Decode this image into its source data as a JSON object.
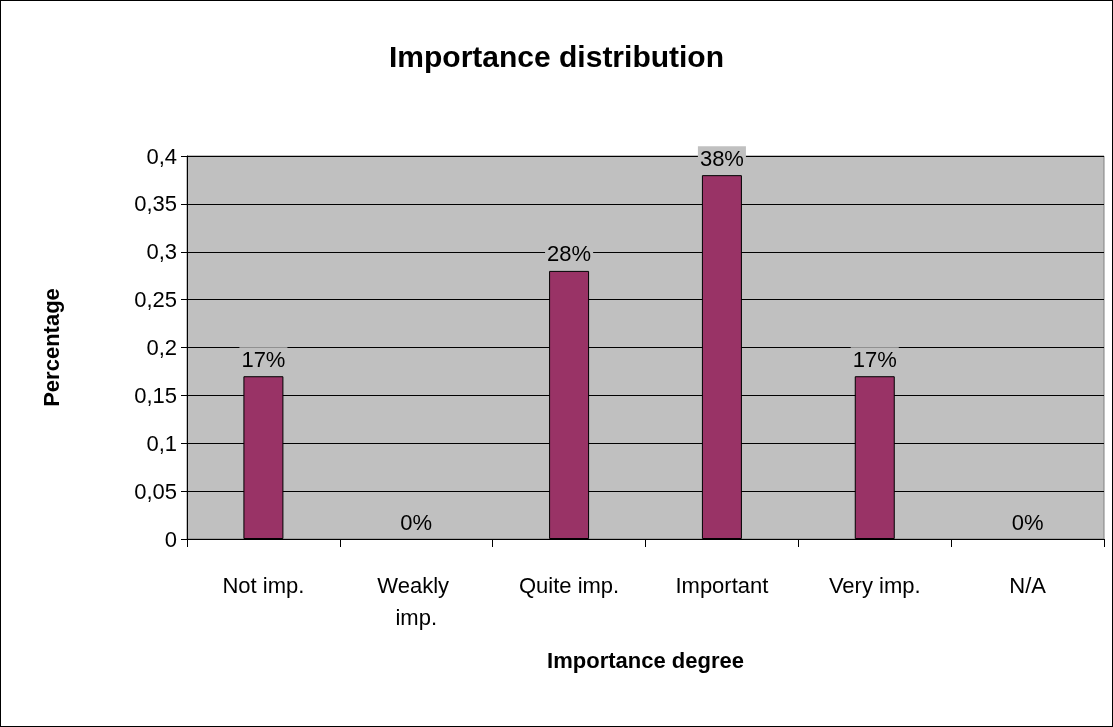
{
  "chart_data": {
    "type": "bar",
    "title": "Importance distribution",
    "xlabel": "Importance degree",
    "ylabel": "Percentage",
    "categories": [
      "Not imp.",
      "Weakly imp.",
      "Quite imp.",
      "Important",
      "Very imp.",
      "N/A"
    ],
    "values": [
      0.17,
      0,
      0.28,
      0.38,
      0.17,
      0
    ],
    "value_labels": [
      "17%",
      "0%",
      "28%",
      "38%",
      "17%",
      "0%"
    ],
    "color": "#993366",
    "ylim": [
      0,
      0.4
    ],
    "yticks": [
      0,
      {
        "value": 0.05,
        "label": "0,05"
      },
      {
        "value": 0.1,
        "label": "0,1"
      },
      {
        "value": 0.15,
        "label": "0,15"
      },
      {
        "value": 0.2,
        "label": "0,2"
      },
      {
        "value": 0.25,
        "label": "0,25"
      },
      {
        "value": 0.3,
        "label": "0,3"
      },
      {
        "value": 0.35,
        "label": "0,35"
      },
      {
        "value": 0.4,
        "label": "0,4"
      }
    ],
    "grid": "y"
  }
}
